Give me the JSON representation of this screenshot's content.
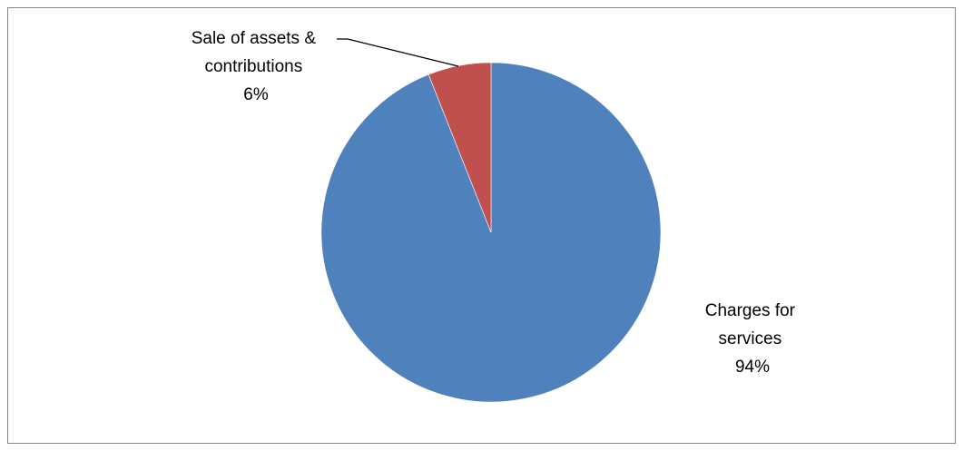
{
  "chart_data": {
    "type": "pie",
    "title": "",
    "slices": [
      {
        "category": "Charges for services",
        "label_lines": [
          "Charges for",
          "services"
        ],
        "percent_label": "94%",
        "value": 94,
        "color": "#4F81BD"
      },
      {
        "category": "Sale of assets & contributions",
        "label_lines": [
          "Sale of assets &",
          "contributions"
        ],
        "percent_label": "6%",
        "value": 6,
        "color": "#C0504D"
      }
    ],
    "start_angle": "12 o'clock",
    "direction": "counter-clockwise for series order (second slice drawn just left of top)",
    "legend": "none",
    "data_labels": "outside, category name and percentage"
  }
}
